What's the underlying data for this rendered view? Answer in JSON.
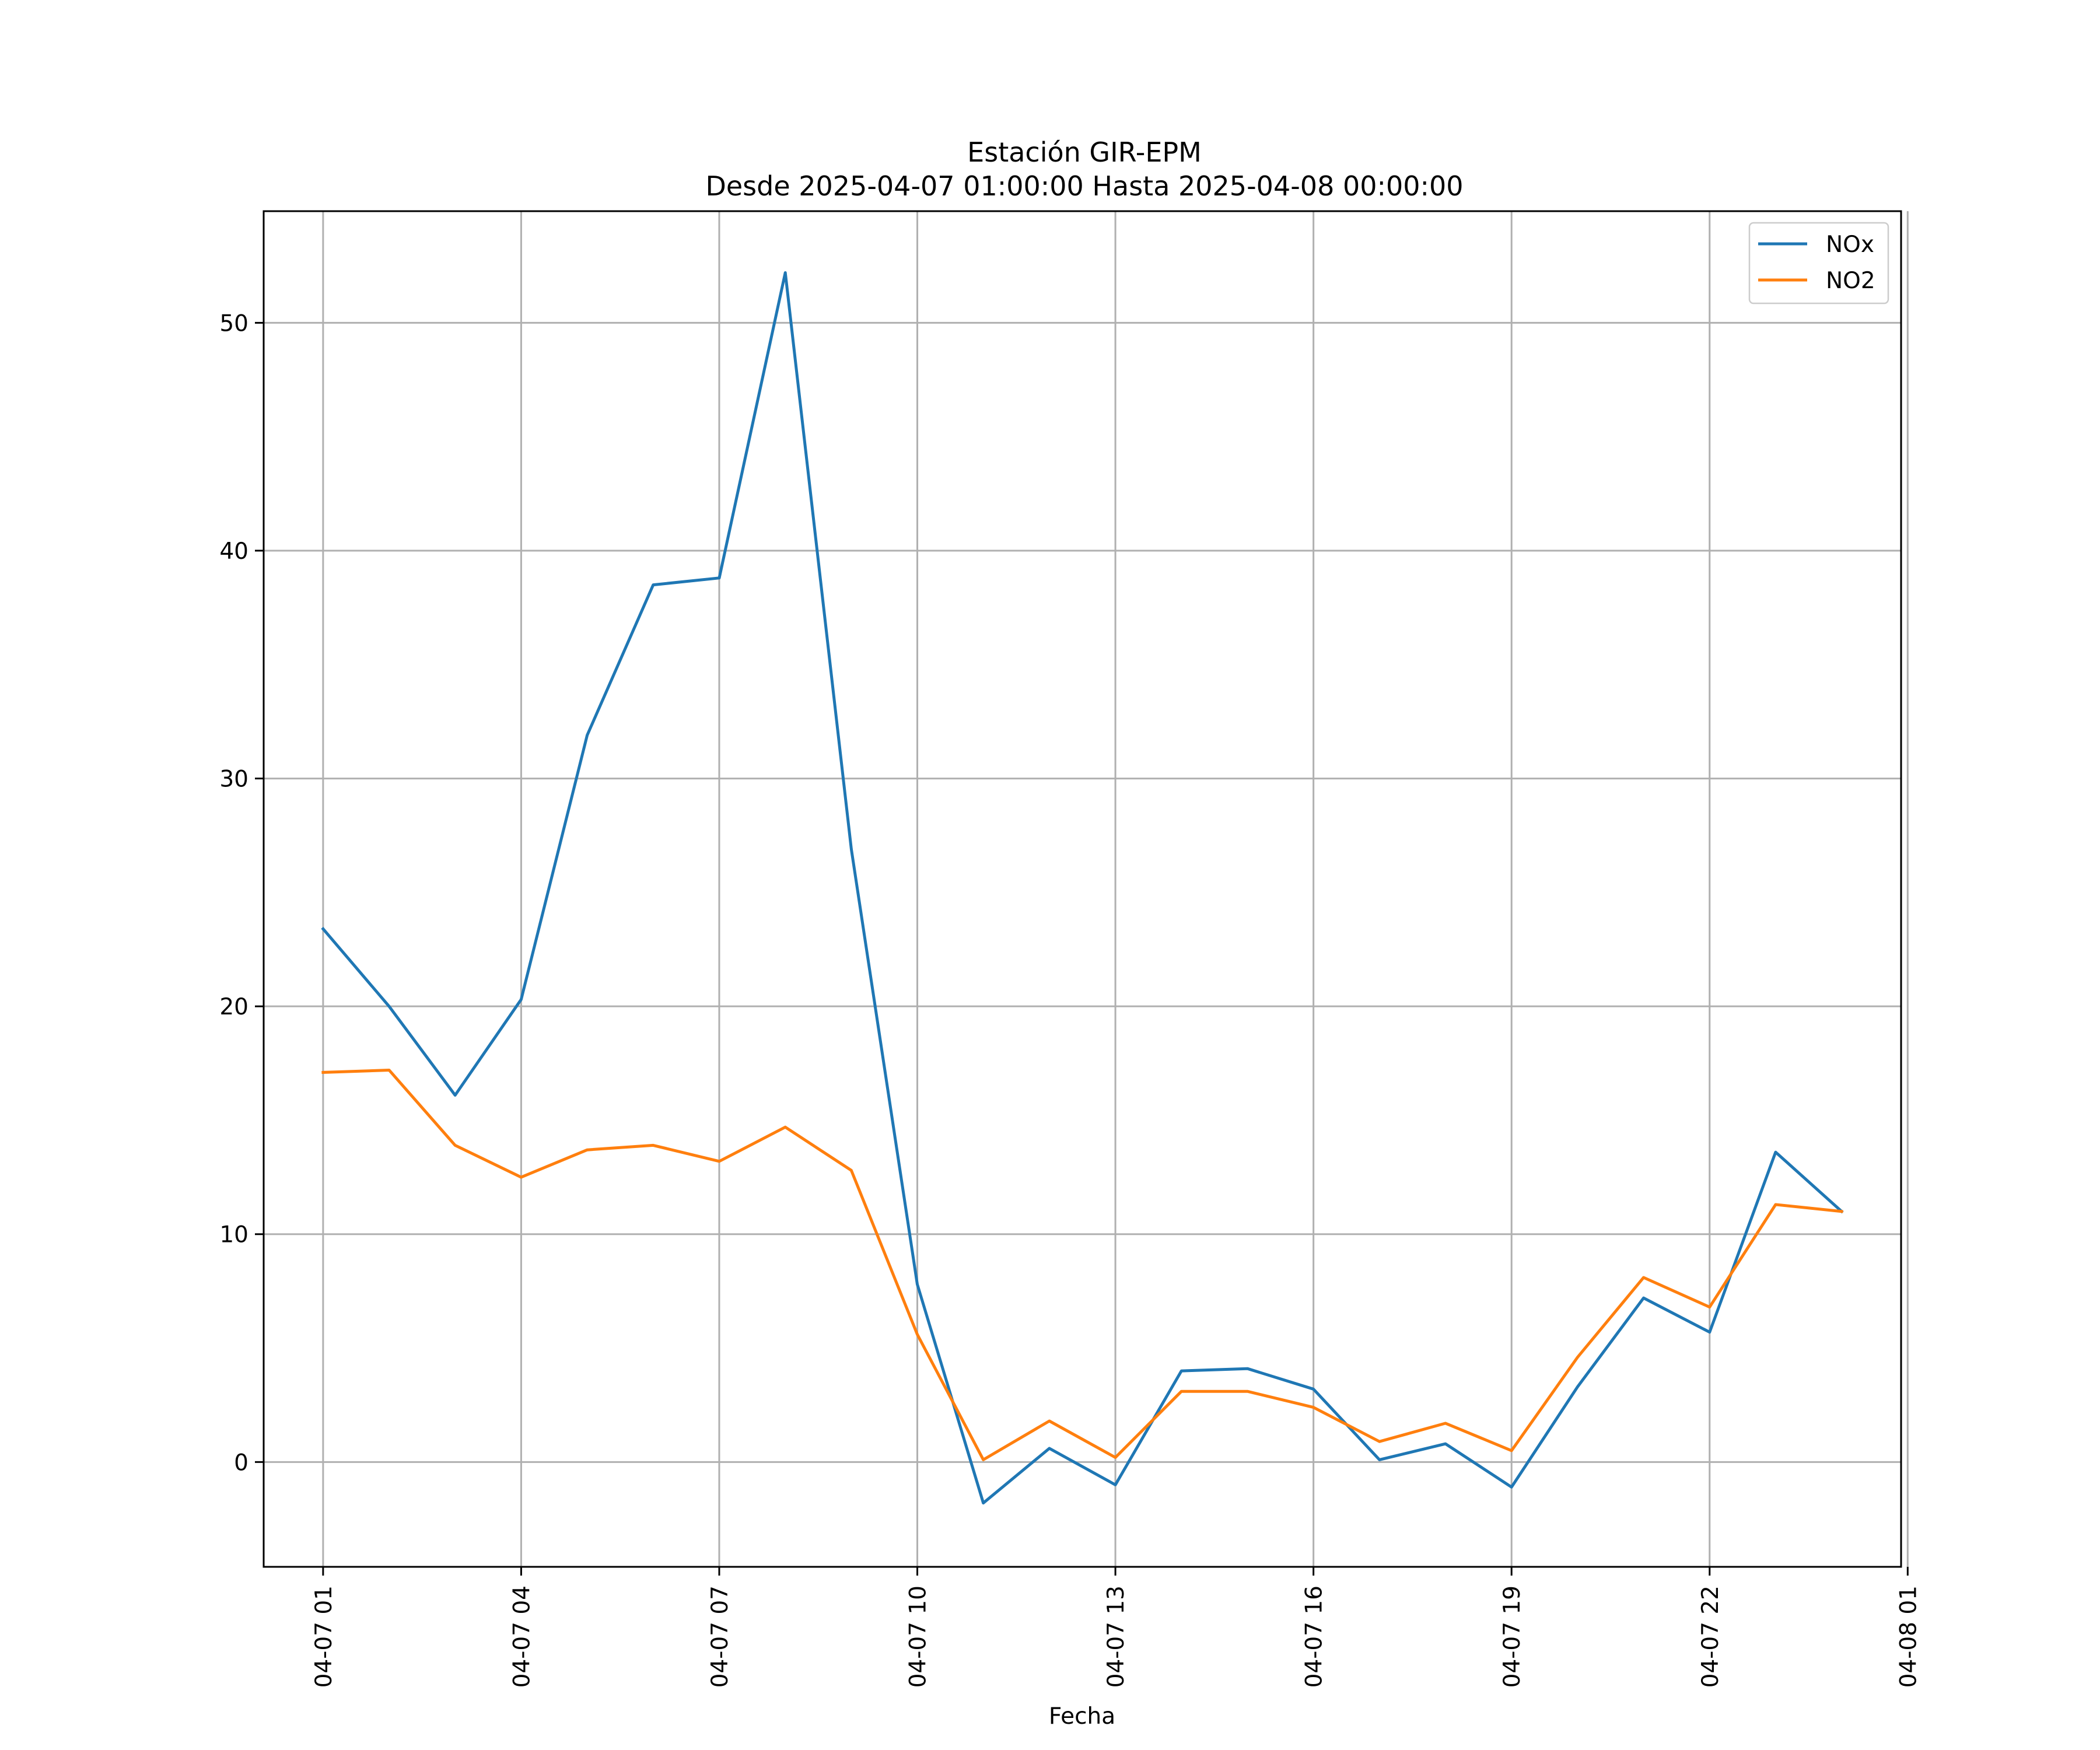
{
  "chart_data": {
    "type": "line",
    "title": "Estación GIR-EPM",
    "subtitle": "Desde 2025-04-07 01:00:00 Hasta 2025-04-08 00:00:00",
    "xlabel": "Fecha",
    "ylabel": "",
    "x": [
      "04-07 01",
      "04-07 02",
      "04-07 03",
      "04-07 04",
      "04-07 05",
      "04-07 06",
      "04-07 07",
      "04-07 08",
      "04-07 09",
      "04-07 10",
      "04-07 11",
      "04-07 12",
      "04-07 13",
      "04-07 14",
      "04-07 15",
      "04-07 16",
      "04-07 17",
      "04-07 18",
      "04-07 19",
      "04-07 20",
      "04-07 21",
      "04-07 22",
      "04-07 23",
      "04-08 00"
    ],
    "x_ticks": [
      "04-07 01",
      "04-07 04",
      "04-07 07",
      "04-07 10",
      "04-07 13",
      "04-07 16",
      "04-07 19",
      "04-07 22",
      "04-08 01"
    ],
    "y_ticks": [
      0,
      10,
      20,
      30,
      40,
      50
    ],
    "xlim": [
      "04-07 00:06",
      "04-08 00:54"
    ],
    "ylim": [
      -4.6,
      54.9
    ],
    "grid": true,
    "legend_position": "top-right",
    "series": [
      {
        "name": "NOx",
        "color": "#1f77b4",
        "values": [
          23.4,
          20.0,
          16.1,
          20.3,
          31.9,
          38.5,
          38.8,
          52.2,
          26.9,
          7.8,
          -1.8,
          0.6,
          -1.0,
          4.0,
          4.1,
          3.2,
          0.1,
          0.8,
          -1.1,
          3.3,
          7.2,
          5.7,
          13.6,
          11.0
        ]
      },
      {
        "name": "NO2",
        "color": "#ff7f0e",
        "values": [
          17.1,
          17.2,
          13.9,
          12.5,
          13.7,
          13.9,
          13.2,
          14.7,
          12.8,
          5.6,
          0.1,
          1.8,
          0.2,
          3.1,
          3.1,
          2.4,
          0.9,
          1.7,
          0.5,
          4.6,
          8.1,
          6.8,
          11.3,
          11.0
        ]
      }
    ]
  }
}
